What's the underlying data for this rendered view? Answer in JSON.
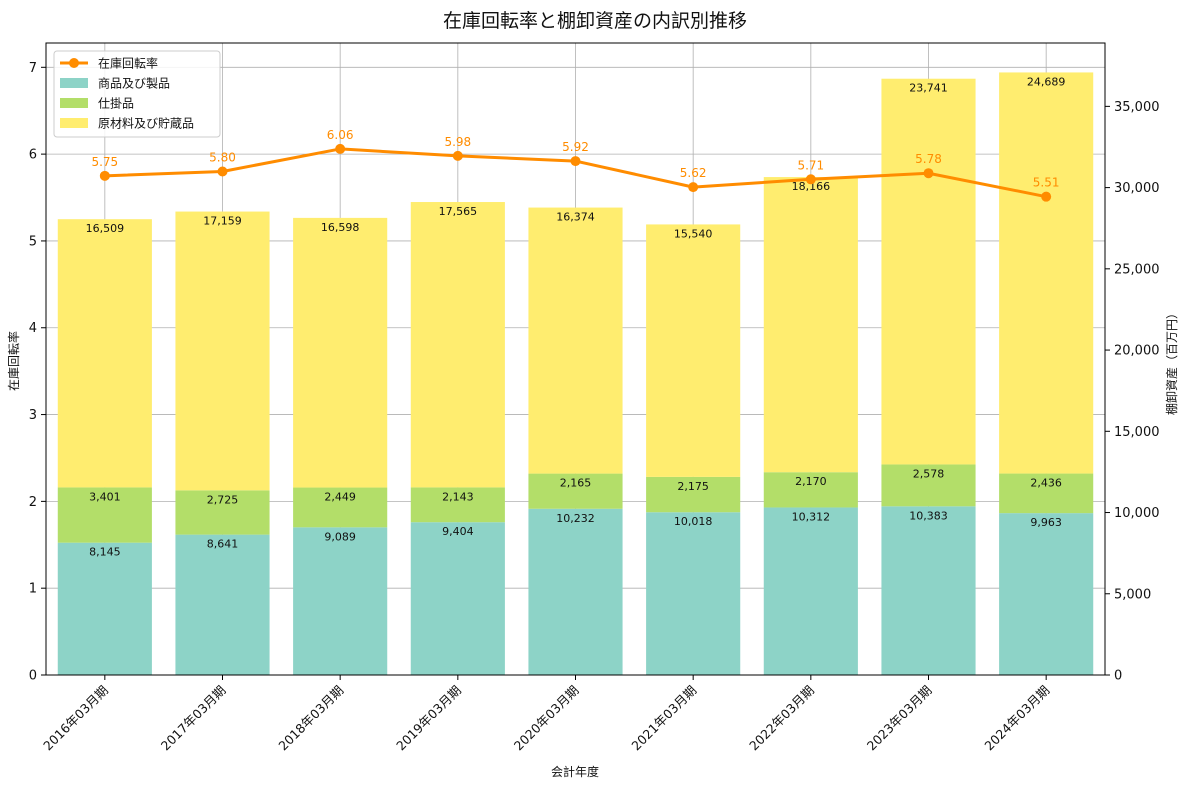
{
  "chart_data": {
    "type": "bar",
    "title": "在庫回転率と棚卸資産の内訳別推移",
    "xlabel": "会計年度",
    "ylabel_left": "在庫回転率",
    "ylabel_right": "棚卸資産（百万円）",
    "categories": [
      "2016年03月期",
      "2017年03月期",
      "2018年03月期",
      "2019年03月期",
      "2020年03月期",
      "2021年03月期",
      "2022年03月期",
      "2023年03月期",
      "2024年03月期"
    ],
    "stacked": true,
    "series": [
      {
        "name": "商品及び製品",
        "axis": "right",
        "color": "#8dd3c7",
        "values": [
          8145,
          8641,
          9089,
          9404,
          10232,
          10018,
          10312,
          10383,
          9963
        ],
        "labels": [
          "8,145",
          "8,641",
          "9,089",
          "9,404",
          "10,232",
          "10,018",
          "10,312",
          "10,383",
          "9,963"
        ]
      },
      {
        "name": "仕掛品",
        "axis": "right",
        "color": "#b3de69",
        "values": [
          3401,
          2725,
          2449,
          2143,
          2165,
          2175,
          2170,
          2578,
          2436
        ],
        "labels": [
          "3,401",
          "2,725",
          "2,449",
          "2,143",
          "2,165",
          "2,175",
          "2,170",
          "2,578",
          "2,436"
        ]
      },
      {
        "name": "原材料及び貯蔵品",
        "axis": "right",
        "color": "#ffed6f",
        "values": [
          16509,
          17159,
          16598,
          17565,
          16374,
          15540,
          18166,
          23741,
          24689
        ],
        "labels": [
          "16,509",
          "17,159",
          "16,598",
          "17,565",
          "16,374",
          "15,540",
          "18,166",
          "23,741",
          "24,689"
        ]
      }
    ],
    "line": {
      "name": "在庫回転率",
      "axis": "left",
      "color": "#ff8c00",
      "values": [
        5.75,
        5.8,
        6.06,
        5.98,
        5.92,
        5.62,
        5.71,
        5.78,
        5.51
      ],
      "labels": [
        "5.75",
        "5.80",
        "6.06",
        "5.98",
        "5.92",
        "5.62",
        "5.71",
        "5.78",
        "5.51"
      ]
    },
    "ylim_left": [
      0,
      7.28
    ],
    "yticks_left": [
      "0",
      "1",
      "2",
      "3",
      "4",
      "5",
      "6",
      "7"
    ],
    "ylim_right": [
      0,
      38900
    ],
    "yticks_right": [
      "0",
      "5,000",
      "10,000",
      "15,000",
      "20,000",
      "25,000",
      "30,000",
      "35,000"
    ],
    "grid": true,
    "legend_position": "top-left"
  }
}
